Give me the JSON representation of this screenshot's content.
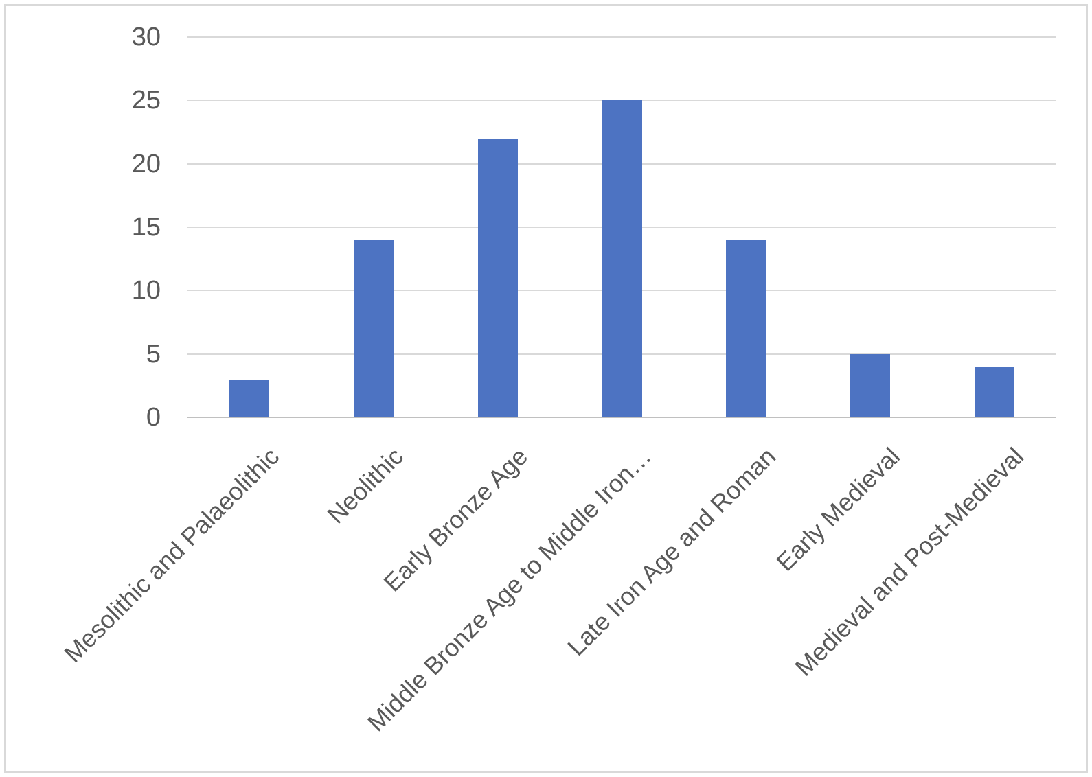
{
  "chart_data": {
    "type": "bar",
    "categories": [
      "Mesolithic and Palaeolithic",
      "Neolithic",
      "Early Bronze Age",
      "Middle Bronze Age to Middle Iron…",
      "Late Iron Age and Roman",
      "Early Medieval",
      "Medieval and Post-Medieval"
    ],
    "values": [
      3,
      14,
      22,
      25,
      14,
      5,
      4
    ],
    "title": "",
    "xlabel": "",
    "ylabel": "",
    "ylim": [
      0,
      30
    ],
    "yticks": [
      0,
      5,
      10,
      15,
      20,
      25,
      30
    ],
    "grid": true,
    "legend_position": "none",
    "colors": {
      "bar": "#4D73C2",
      "gridline": "#D9D9D9",
      "axis_line": "#C0C0C0",
      "tick_label": "#595959",
      "frame_border": "#D9D9D9",
      "background": "#FFFFFF"
    }
  }
}
